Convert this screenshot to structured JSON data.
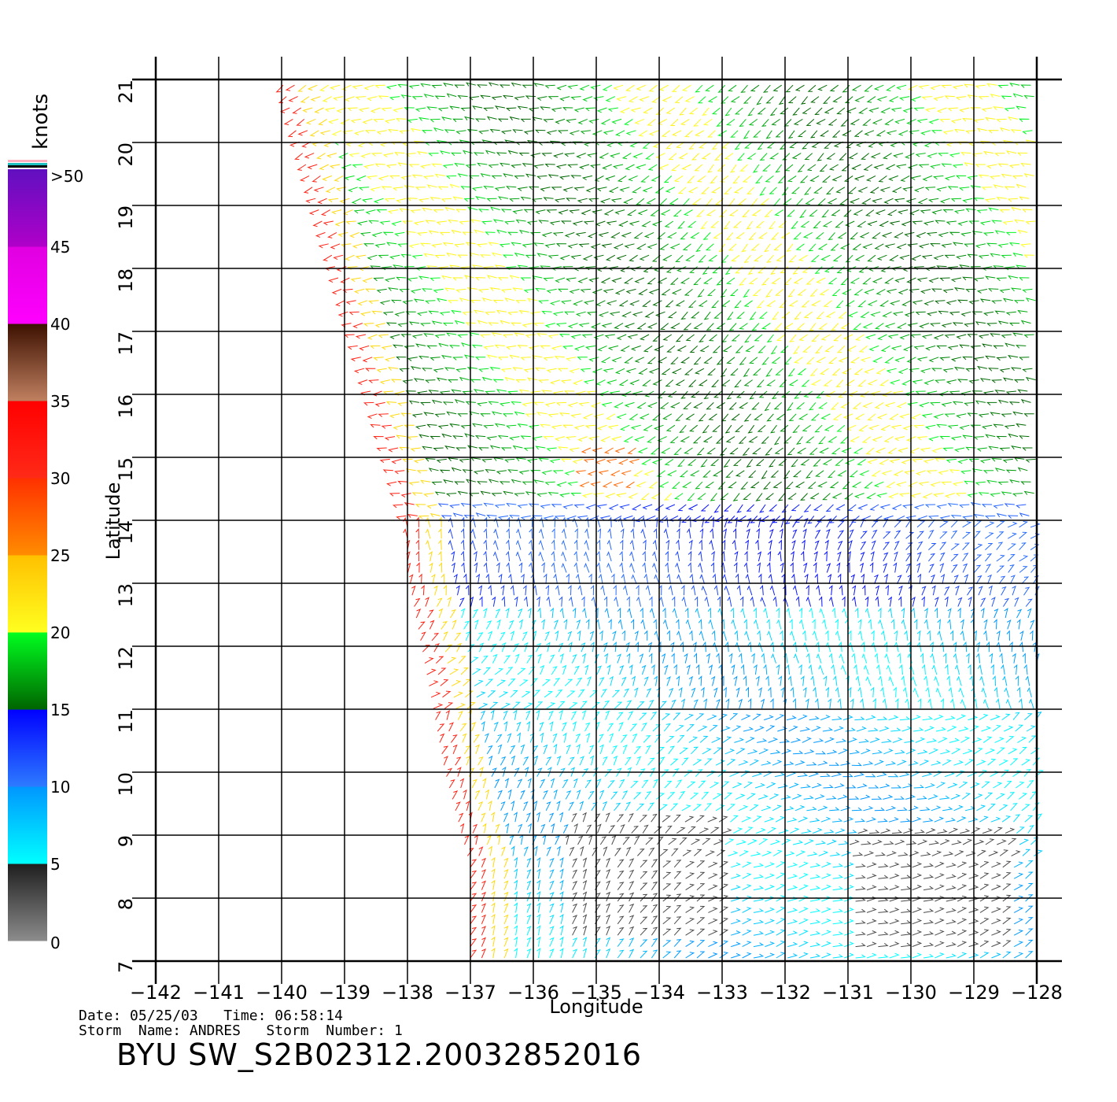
{
  "colorbar": {
    "unit_label": "knots",
    "tick_labels": [
      ">50",
      "45",
      "40",
      "35",
      "30",
      "25",
      "20",
      "15",
      "10",
      "5",
      "0"
    ],
    "segments": [
      {
        "from": 0,
        "to": 5,
        "colors": [
          "#8c8c8c",
          "#1e1e1e"
        ]
      },
      {
        "from": 5,
        "to": 10,
        "colors": [
          "#00ffff",
          "#0096ff"
        ]
      },
      {
        "from": 10,
        "to": 15,
        "colors": [
          "#2d7bff",
          "#0000ff"
        ]
      },
      {
        "from": 15,
        "to": 20,
        "colors": [
          "#006400",
          "#00ff20"
        ]
      },
      {
        "from": 20,
        "to": 25,
        "colors": [
          "#ffff20",
          "#ffc000"
        ]
      },
      {
        "from": 25,
        "to": 30,
        "colors": [
          "#ff8c00",
          "#ff3000"
        ]
      },
      {
        "from": 30,
        "to": 35,
        "colors": [
          "#ff2a18",
          "#ff0000"
        ]
      },
      {
        "from": 35,
        "to": 40,
        "colors": [
          "#c08060",
          "#3c1000"
        ]
      },
      {
        "from": 40,
        "to": 45,
        "colors": [
          "#ff00ff",
          "#e000e0"
        ]
      },
      {
        "from": 45,
        "to": 50,
        "colors": [
          "#b000c8",
          "#6010c0"
        ]
      }
    ]
  },
  "chart_data": {
    "type": "scatter",
    "xlabel": "Longitude",
    "ylabel": "Latitude",
    "xlim": [
      -142,
      -128
    ],
    "ylim": [
      7,
      21
    ],
    "x_ticks": [
      "−142",
      "−141",
      "−140",
      "−139",
      "−138",
      "−137",
      "−136",
      "−135",
      "−134",
      "−133",
      "−132",
      "−131",
      "−130",
      "−129",
      "−128"
    ],
    "y_ticks": [
      "7",
      "8",
      "9",
      "10",
      "11",
      "12",
      "13",
      "14",
      "15",
      "16",
      "17",
      "18",
      "19",
      "20",
      "21"
    ],
    "grid": true,
    "swath_edge": [
      [
        -140.0,
        21
      ],
      [
        -138.0,
        14
      ],
      [
        -138.0,
        13.2
      ],
      [
        -137.4,
        10
      ],
      [
        -137.0,
        8.5
      ],
      [
        -137.0,
        7
      ]
    ],
    "wind_regions": [
      {
        "name": "calm",
        "speed_knots": 3,
        "lon": [
          -135.5,
          -133.0
        ],
        "lat": [
          7.4,
          9.3
        ]
      },
      {
        "name": "calm",
        "speed_knots": 3,
        "lon": [
          -131.0,
          -128.4
        ],
        "lat": [
          7.2,
          9.2
        ]
      },
      {
        "name": "strong",
        "speed_knots": 28,
        "lon": [
          -135.2,
          -134.3
        ],
        "lat": [
          14.5,
          15.3
        ]
      }
    ]
  },
  "footer": {
    "date_line": "Date: 05/25/03   Time: 06:58:14",
    "storm_line": "Storm  Name: ANDRES   Storm  Number: 1",
    "product": "BYU  SW_S2B02312.20032852016"
  }
}
